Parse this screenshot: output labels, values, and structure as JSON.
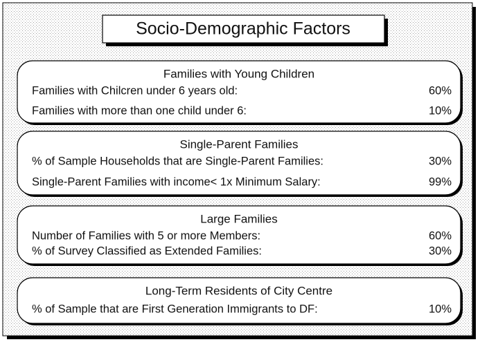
{
  "title": "Socio-Demographic Factors",
  "sections": [
    {
      "heading": "Families with Young Children",
      "rows": [
        {
          "label": "Families with Chilcren under 6 years old:",
          "value": "60%"
        },
        {
          "label": "Families with more than one child under 6:",
          "value": "10%"
        }
      ]
    },
    {
      "heading": "Single-Parent Families",
      "rows": [
        {
          "label": "% of Sample Households that are Single-Parent Families:",
          "value": "30%"
        },
        {
          "label": "Single-Parent Families with income< 1x Minimum Salary:",
          "value": "99%"
        }
      ]
    },
    {
      "heading": "Large Families",
      "rows": [
        {
          "label": "Number of Families with 5 or more Members:",
          "value": "60%"
        },
        {
          "label": "% of Survey Classified as Extended Families:",
          "value": "30%"
        }
      ]
    },
    {
      "heading": "Long-Term Residents of City Centre",
      "rows": [
        {
          "label": "% of Sample that are First Generation Immigrants to DF:",
          "value": "10%"
        }
      ]
    }
  ]
}
